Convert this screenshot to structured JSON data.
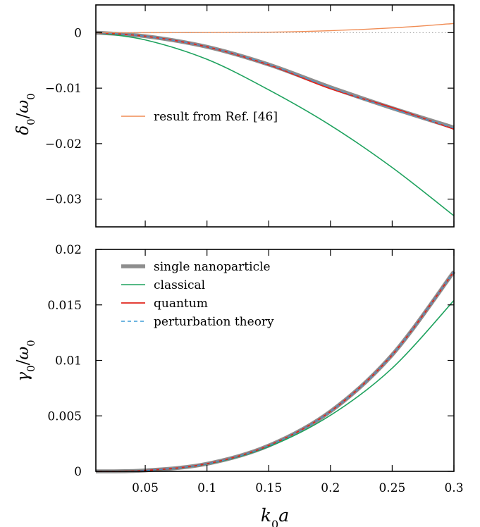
{
  "chart_data": [
    {
      "type": "line",
      "panel": "top",
      "ylabel_base": "δ",
      "ylabel_sub": "0",
      "ylabel_den": "ω",
      "ylabel_den_sub": "0",
      "xlim": [
        0.01,
        0.3
      ],
      "ylim": [
        -0.035,
        0.005
      ],
      "yticks": [
        0,
        -0.01,
        -0.02,
        -0.03
      ],
      "ytick_labels": [
        "0",
        "−0.01",
        "−0.02",
        "−0.03"
      ],
      "legend": [
        {
          "label": "result from Ref. [46]",
          "color": "#f08c54"
        }
      ],
      "series": [
        {
          "name": "single nanoparticle",
          "color": "#8e8e8e",
          "width": 5.5,
          "dash": "",
          "x": [
            0.01,
            0.05,
            0.1,
            0.15,
            0.2,
            0.25,
            0.3
          ],
          "y": [
            0,
            -0.00064,
            -0.00255,
            -0.00574,
            -0.00983,
            -0.0136,
            -0.0171
          ]
        },
        {
          "name": "classical",
          "color": "#1ea25e",
          "width": 1.6,
          "dash": "",
          "x": [
            0.01,
            0.05,
            0.1,
            0.15,
            0.2,
            0.25,
            0.3
          ],
          "y": [
            0,
            -0.0013,
            -0.0048,
            -0.0103,
            -0.0167,
            -0.0243,
            -0.033
          ]
        },
        {
          "name": "quantum",
          "color": "#e0241c",
          "width": 1.8,
          "dash": "",
          "x": [
            0.01,
            0.05,
            0.1,
            0.15,
            0.2,
            0.25,
            0.3
          ],
          "y": [
            0,
            -0.00064,
            -0.00255,
            -0.0058,
            -0.0101,
            -0.0135,
            -0.0174
          ]
        },
        {
          "name": "perturbation theory",
          "color": "#3d9bd6",
          "width": 1.4,
          "dash": "5,4",
          "x": [
            0.01,
            0.05,
            0.1,
            0.15,
            0.2,
            0.25,
            0.3
          ],
          "y": [
            0,
            -0.00064,
            -0.00255,
            -0.00574,
            -0.0099,
            -0.0137,
            -0.0172
          ]
        },
        {
          "name": "result from Ref. [46]",
          "color": "#f08c54",
          "width": 1.4,
          "dash": "",
          "x": [
            0.01,
            0.05,
            0.1,
            0.15,
            0.2,
            0.25,
            0.3
          ],
          "y": [
            0,
            0,
            3e-05,
            9e-05,
            0.00036,
            0.00086,
            0.00165
          ]
        },
        {
          "name": "zero line",
          "color": "#9a9a9a",
          "width": 1.0,
          "dash": "1.5,3",
          "x": [
            0.01,
            0.3
          ],
          "y": [
            0,
            0
          ]
        }
      ]
    },
    {
      "type": "line",
      "panel": "bottom",
      "xlabel_base": "k",
      "xlabel_sub": "0",
      "xlabel_tail": "a",
      "ylabel_base": "γ",
      "ylabel_sub": "0",
      "ylabel_den": "ω",
      "ylabel_den_sub": "0",
      "xlim": [
        0.01,
        0.3
      ],
      "ylim": [
        0,
        0.02
      ],
      "xticks": [
        0.05,
        0.1,
        0.15,
        0.2,
        0.25,
        0.3
      ],
      "xtick_labels": [
        "0.05",
        "0.1",
        "0.15",
        "0.2",
        "0.25",
        "0.3"
      ],
      "yticks": [
        0,
        0.005,
        0.01,
        0.015,
        0.02
      ],
      "ytick_labels": [
        "0",
        "0.005",
        "0.01",
        "0.015",
        "0.02"
      ],
      "legend": [
        {
          "label": "single nanoparticle",
          "color": "#8e8e8e",
          "width": 5.5,
          "dash": ""
        },
        {
          "label": "classical",
          "color": "#1ea25e",
          "width": 1.6,
          "dash": ""
        },
        {
          "label": "quantum",
          "color": "#e0241c",
          "width": 1.8,
          "dash": ""
        },
        {
          "label": "perturbation theory",
          "color": "#3d9bd6",
          "width": 1.4,
          "dash": "5,4"
        }
      ],
      "series": [
        {
          "name": "single nanoparticle",
          "color": "#8e8e8e",
          "width": 5.5,
          "dash": "",
          "x": [
            0.01,
            0.05,
            0.1,
            0.15,
            0.2,
            0.25,
            0.3
          ],
          "y": [
            0,
            8e-05,
            0.00068,
            0.00232,
            0.0054,
            0.0105,
            0.018
          ]
        },
        {
          "name": "classical",
          "color": "#1ea25e",
          "width": 1.6,
          "dash": "",
          "x": [
            0.01,
            0.05,
            0.1,
            0.15,
            0.2,
            0.25,
            0.3
          ],
          "y": [
            0,
            7e-05,
            0.00065,
            0.00222,
            0.00505,
            0.0093,
            0.0154
          ]
        },
        {
          "name": "quantum",
          "color": "#e0241c",
          "width": 1.8,
          "dash": "",
          "x": [
            0.01,
            0.05,
            0.1,
            0.15,
            0.2,
            0.25,
            0.3
          ],
          "y": [
            0,
            8e-05,
            0.00068,
            0.00232,
            0.0054,
            0.0105,
            0.018
          ]
        },
        {
          "name": "perturbation theory",
          "color": "#3d9bd6",
          "width": 1.4,
          "dash": "5,4",
          "x": [
            0.01,
            0.05,
            0.1,
            0.15,
            0.2,
            0.25,
            0.3
          ],
          "y": [
            0,
            8e-05,
            0.00068,
            0.00232,
            0.0054,
            0.0105,
            0.018
          ]
        }
      ]
    }
  ]
}
